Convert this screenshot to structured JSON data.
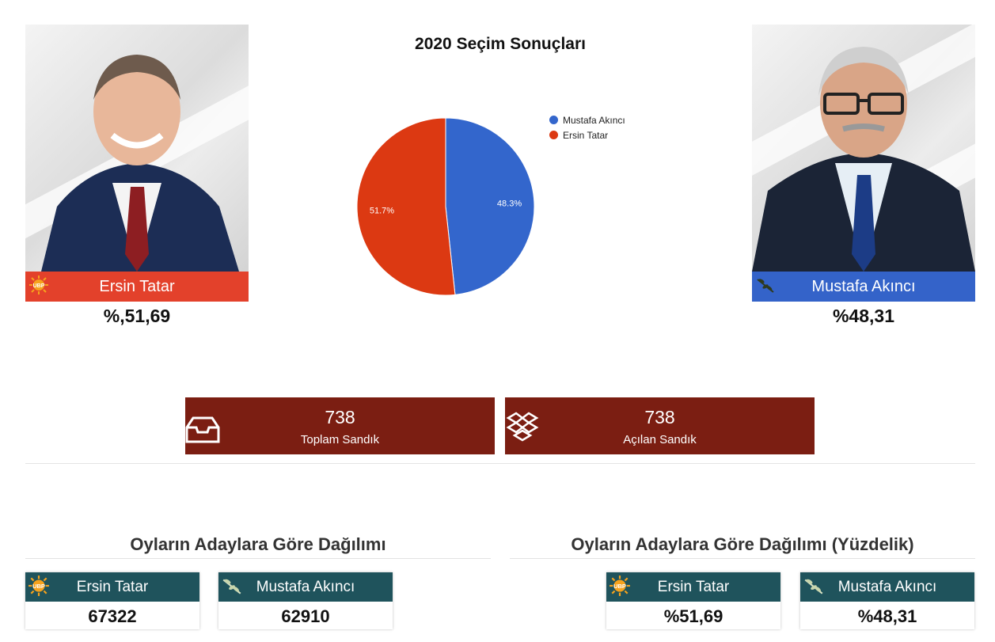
{
  "chart": {
    "title": "2020 Seçim Sonuçları"
  },
  "chart_data": {
    "type": "pie",
    "title": "2020 Seçim Sonuçları",
    "categories": [
      "Mustafa Akıncı",
      "Ersin Tatar"
    ],
    "values": [
      48.3,
      51.7
    ],
    "labels": [
      "48.3%",
      "51.7%"
    ],
    "colors": [
      "#3366cc",
      "#dc3912"
    ],
    "legend": "right"
  },
  "candidates": [
    {
      "name": "Ersin Tatar",
      "percent": "%,51,69",
      "bar_color": "#e3412b",
      "logo": "ubp-sun-icon"
    },
    {
      "name": "Mustafa Akıncı",
      "percent": "%48,31",
      "bar_color": "#3463c9",
      "logo": "olive-branch-icon"
    }
  ],
  "stats": [
    {
      "value": "738",
      "label": "Toplam Sandık",
      "icon": "ballot-box-icon"
    },
    {
      "value": "738",
      "label": "Açılan Sandık",
      "icon": "open-box-icon"
    }
  ],
  "sections": {
    "votes_title": "Oyların Adaylara Göre Dağılımı",
    "percent_title": "Oyların Adaylara Göre Dağılımı (Yüzdelik)"
  },
  "votes": [
    {
      "name": "Ersin Tatar",
      "value": "67322"
    },
    {
      "name": "Mustafa Akıncı",
      "value": "62910"
    }
  ],
  "percents": [
    {
      "name": "Ersin Tatar",
      "value": "%51,69"
    },
    {
      "name": "Mustafa Akıncı",
      "value": "%48,31"
    }
  ]
}
